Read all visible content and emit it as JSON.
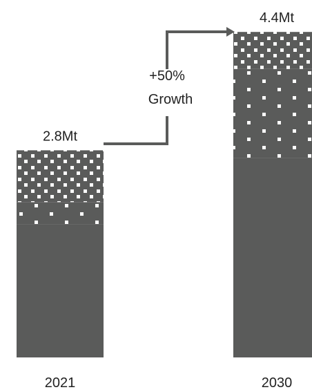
{
  "chart_data": {
    "type": "bar",
    "stacked": true,
    "categories": [
      "2021",
      "2030"
    ],
    "totals": [
      2.8,
      4.4
    ],
    "total_labels": [
      "2.8Mt",
      "4.4Mt"
    ],
    "series": [
      {
        "values": [
          1.8,
          2.7
        ],
        "pattern": "solid"
      },
      {
        "values": [
          0.3,
          1.2
        ],
        "pattern": "sparse-dots"
      },
      {
        "values": [
          0.7,
          0.5
        ],
        "pattern": "dense-dots"
      }
    ],
    "annotation": {
      "line1": "+50%",
      "line2": "Growth"
    },
    "colors": {
      "bar": "#5a5b5a",
      "dot": "#ffffff",
      "arrow": "#5a5b5a"
    }
  }
}
